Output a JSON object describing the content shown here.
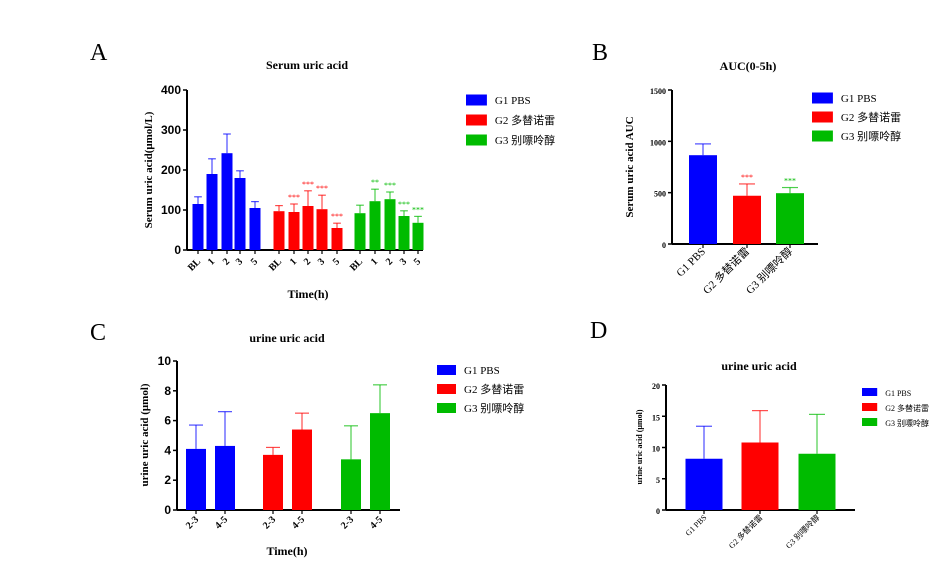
{
  "colors": {
    "G1": "#0000ff",
    "G2": "#ff0000",
    "G3": "#00bb00",
    "axis": "#000000"
  },
  "legend": [
    "G1 PBS",
    "G2 多替诺雷",
    "G3 别嘌呤醇"
  ],
  "chart_data": [
    {
      "panel": "A",
      "type": "bar",
      "title": "Serum uric acid",
      "xlabel": "Time(h)",
      "ylabel": "Serum uric acid(μmol/L)",
      "ylim": [
        0,
        400
      ],
      "yticks": [
        0,
        100,
        200,
        300,
        400
      ],
      "categories": [
        "BL",
        "1",
        "2",
        "3",
        "5"
      ],
      "series": [
        {
          "name": "G1 PBS",
          "values": [
            115,
            190,
            242,
            180,
            105
          ],
          "errors": [
            18,
            38,
            48,
            18,
            16
          ],
          "sig": [
            "",
            "",
            "",
            "",
            ""
          ]
        },
        {
          "name": "G2 多替诺雷",
          "values": [
            97,
            95,
            110,
            102,
            55
          ],
          "errors": [
            14,
            20,
            38,
            35,
            12
          ],
          "sig": [
            "",
            "***",
            "***",
            "***",
            "***"
          ]
        },
        {
          "name": "G3 别嘌呤醇",
          "values": [
            92,
            122,
            127,
            85,
            68
          ],
          "errors": [
            20,
            30,
            18,
            13,
            16
          ],
          "sig": [
            "",
            "**",
            "***",
            "***",
            "***"
          ]
        }
      ]
    },
    {
      "panel": "B",
      "type": "bar",
      "title": "AUC(0-5h)",
      "xlabel": "",
      "ylabel": "Serum uric acid AUC",
      "ylim": [
        0,
        1500
      ],
      "yticks": [
        0,
        500,
        1000,
        1500
      ],
      "categories": [
        "G1 PBS",
        "G2 多替诺雷",
        "G3 别嘌呤醇"
      ],
      "values": [
        865,
        470,
        495
      ],
      "errors": [
        110,
        115,
        55
      ],
      "sig": [
        "",
        "***",
        "***"
      ]
    },
    {
      "panel": "C",
      "type": "bar",
      "title": "urine uric acid",
      "xlabel": "Time(h)",
      "ylabel": "urine uric acid (μmol)",
      "ylim": [
        0,
        10
      ],
      "yticks": [
        0,
        2,
        4,
        6,
        8,
        10
      ],
      "categories": [
        "2-3",
        "4-5"
      ],
      "series": [
        {
          "name": "G1 PBS",
          "values": [
            4.1,
            4.3
          ],
          "errors": [
            1.6,
            2.3
          ]
        },
        {
          "name": "G2 多替诺雷",
          "values": [
            3.7,
            5.4
          ],
          "errors": [
            0.5,
            1.1
          ]
        },
        {
          "name": "G3 别嘌呤醇",
          "values": [
            3.4,
            6.5
          ],
          "errors": [
            2.25,
            1.9
          ]
        }
      ]
    },
    {
      "panel": "D",
      "type": "bar",
      "title": "urine uric acid",
      "xlabel": "",
      "ylabel": "urine uric acid (μmol)",
      "ylim": [
        0,
        20
      ],
      "yticks": [
        0,
        5,
        10,
        15,
        20
      ],
      "categories": [
        "G1 PBS",
        "G2 多替诺雷",
        "G3 别嘌呤醇"
      ],
      "values": [
        8.2,
        10.8,
        9.0
      ],
      "errors": [
        5.2,
        5.1,
        6.3
      ],
      "sig": [
        "",
        "",
        ""
      ]
    }
  ]
}
